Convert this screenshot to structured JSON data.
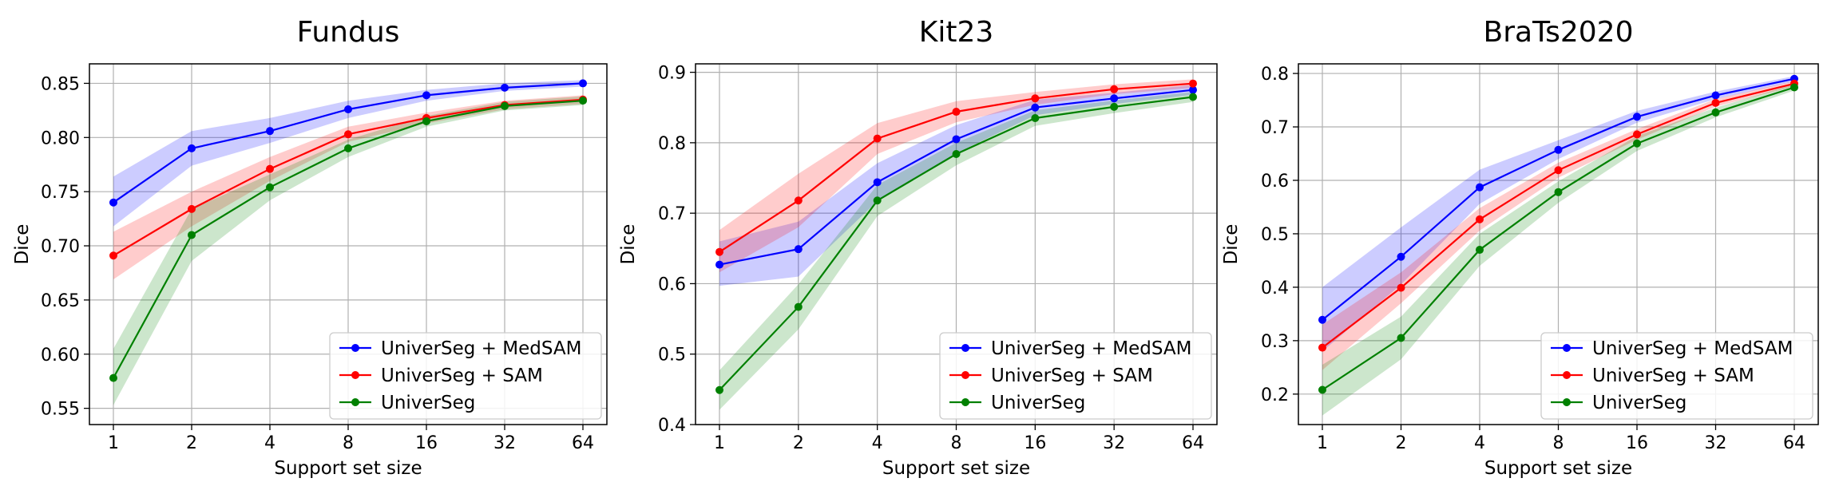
{
  "chart_data": [
    {
      "type": "line",
      "title": "Fundus",
      "xlabel": "Support set size",
      "ylabel": "Dice",
      "x": [
        "1",
        "2",
        "4",
        "8",
        "16",
        "32",
        "64"
      ],
      "ylim": [
        0.535,
        0.868
      ],
      "yticks": [
        "0.55",
        "0.60",
        "0.65",
        "0.70",
        "0.75",
        "0.80",
        "0.85"
      ],
      "ytick_values": [
        0.55,
        0.6,
        0.65,
        0.7,
        0.75,
        0.8,
        0.85
      ],
      "grid": true,
      "legend_position": "bottom-right",
      "series": [
        {
          "name": "UniverSeg + MedSAM",
          "color": "#0000ff",
          "values": [
            0.74,
            0.79,
            0.806,
            0.826,
            0.839,
            0.846,
            0.85
          ],
          "lower": [
            0.718,
            0.774,
            0.795,
            0.818,
            0.834,
            0.843,
            0.847
          ],
          "upper": [
            0.764,
            0.806,
            0.818,
            0.834,
            0.844,
            0.85,
            0.853
          ]
        },
        {
          "name": "UniverSeg + SAM",
          "color": "#ff0000",
          "values": [
            0.691,
            0.734,
            0.771,
            0.803,
            0.818,
            0.83,
            0.835
          ],
          "lower": [
            0.669,
            0.718,
            0.76,
            0.796,
            0.813,
            0.826,
            0.831
          ],
          "upper": [
            0.713,
            0.75,
            0.782,
            0.81,
            0.823,
            0.834,
            0.839
          ]
        },
        {
          "name": "UniverSeg",
          "color": "#008000",
          "values": [
            0.578,
            0.71,
            0.754,
            0.79,
            0.815,
            0.829,
            0.834
          ],
          "lower": [
            0.553,
            0.686,
            0.742,
            0.782,
            0.81,
            0.825,
            0.83
          ],
          "upper": [
            0.605,
            0.734,
            0.766,
            0.798,
            0.82,
            0.833,
            0.838
          ]
        }
      ]
    },
    {
      "type": "line",
      "title": "Kit23",
      "xlabel": "Support set size",
      "ylabel": "Dice",
      "x": [
        "1",
        "2",
        "4",
        "8",
        "16",
        "32",
        "64"
      ],
      "ylim": [
        0.4,
        0.912
      ],
      "yticks": [
        "0.4",
        "0.5",
        "0.6",
        "0.7",
        "0.8",
        "0.9"
      ],
      "ytick_values": [
        0.4,
        0.5,
        0.6,
        0.7,
        0.8,
        0.9
      ],
      "grid": true,
      "legend_position": "bottom-right",
      "series": [
        {
          "name": "UniverSeg + MedSAM",
          "color": "#0000ff",
          "values": [
            0.627,
            0.649,
            0.744,
            0.805,
            0.85,
            0.863,
            0.875
          ],
          "lower": [
            0.597,
            0.61,
            0.717,
            0.785,
            0.839,
            0.855,
            0.868
          ],
          "upper": [
            0.66,
            0.688,
            0.771,
            0.825,
            0.861,
            0.871,
            0.882
          ]
        },
        {
          "name": "UniverSeg + SAM",
          "color": "#ff0000",
          "values": [
            0.645,
            0.718,
            0.806,
            0.844,
            0.863,
            0.876,
            0.884
          ],
          "lower": [
            0.616,
            0.68,
            0.784,
            0.829,
            0.854,
            0.869,
            0.878
          ],
          "upper": [
            0.676,
            0.756,
            0.828,
            0.859,
            0.872,
            0.883,
            0.89
          ]
        },
        {
          "name": "UniverSeg",
          "color": "#008000",
          "values": [
            0.449,
            0.567,
            0.718,
            0.784,
            0.835,
            0.851,
            0.865
          ],
          "lower": [
            0.421,
            0.535,
            0.696,
            0.768,
            0.824,
            0.842,
            0.858
          ],
          "upper": [
            0.477,
            0.599,
            0.74,
            0.8,
            0.846,
            0.86,
            0.872
          ]
        }
      ]
    },
    {
      "type": "line",
      "title": "BraTs2020",
      "xlabel": "Support set size",
      "ylabel": "Dice",
      "x": [
        "1",
        "2",
        "4",
        "8",
        "16",
        "32",
        "64"
      ],
      "ylim": [
        0.143,
        0.818
      ],
      "yticks": [
        "0.2",
        "0.3",
        "0.4",
        "0.5",
        "0.6",
        "0.7",
        "0.8"
      ],
      "ytick_values": [
        0.2,
        0.3,
        0.4,
        0.5,
        0.6,
        0.7,
        0.8
      ],
      "grid": true,
      "legend_position": "bottom-right",
      "series": [
        {
          "name": "UniverSeg + MedSAM",
          "color": "#0000ff",
          "values": [
            0.339,
            0.457,
            0.587,
            0.657,
            0.719,
            0.759,
            0.79
          ],
          "lower": [
            0.28,
            0.405,
            0.556,
            0.64,
            0.708,
            0.752,
            0.785
          ],
          "upper": [
            0.4,
            0.512,
            0.62,
            0.675,
            0.73,
            0.766,
            0.795
          ]
        },
        {
          "name": "UniverSeg + SAM",
          "color": "#ff0000",
          "values": [
            0.287,
            0.399,
            0.527,
            0.619,
            0.686,
            0.745,
            0.781
          ],
          "lower": [
            0.245,
            0.37,
            0.506,
            0.605,
            0.676,
            0.738,
            0.776
          ],
          "upper": [
            0.33,
            0.428,
            0.548,
            0.633,
            0.696,
            0.752,
            0.786
          ]
        },
        {
          "name": "UniverSeg",
          "color": "#008000",
          "values": [
            0.208,
            0.305,
            0.47,
            0.578,
            0.669,
            0.727,
            0.774
          ],
          "lower": [
            0.16,
            0.265,
            0.44,
            0.558,
            0.655,
            0.718,
            0.768
          ],
          "upper": [
            0.255,
            0.345,
            0.5,
            0.598,
            0.683,
            0.736,
            0.78
          ]
        }
      ]
    }
  ]
}
